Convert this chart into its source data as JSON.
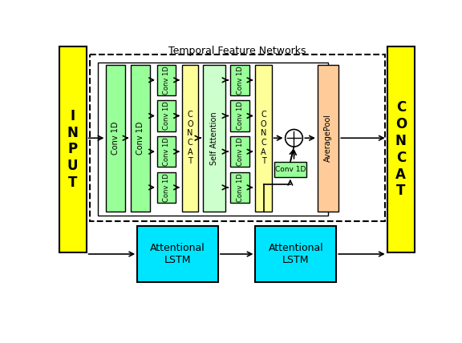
{
  "figsize": [
    5.76,
    4.28
  ],
  "dpi": 100,
  "bg_color": "#ffffff",
  "input_color": "#ffff00",
  "concat_color": "#ffff00",
  "green_tall": "#99ff99",
  "yellow_concat": "#ffff99",
  "self_attn_color": "#ccffcc",
  "avgpool_color": "#ffcc99",
  "lstm_color": "#00e5ff",
  "conv_skip_color": "#99ff99",
  "title": "Temporal Feature Networks",
  "input_label": "I\nN\nP\nU\nT",
  "concat_label": "C\nO\nN\nC\nA\nT",
  "lstm_label": "Attentional\nLSTM",
  "conv1d_label": "Conv 1D",
  "avgpool_label": "AveragePool",
  "self_attn_label": "Self Attention",
  "concat_col_label": "C\nO\nN\nC\nA\nT"
}
